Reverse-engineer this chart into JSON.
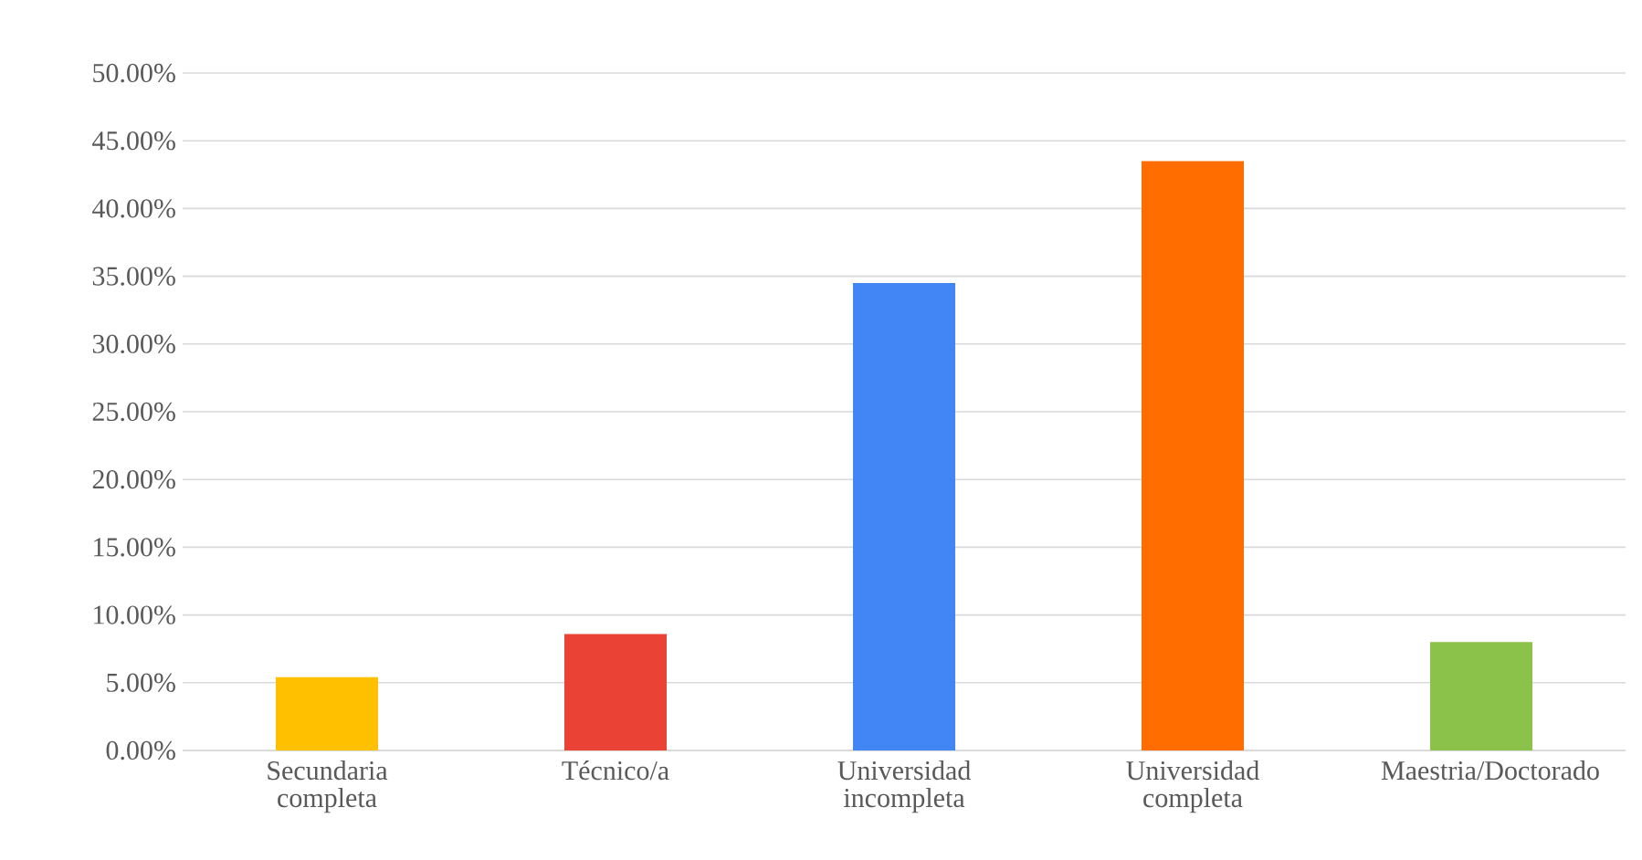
{
  "chart_data": {
    "type": "bar",
    "categories": [
      "Secundaria completa",
      "Técnico/a",
      "Universidad incompleta",
      "Universidad completa",
      "Maestria/Doctorado"
    ],
    "values": [
      5.4,
      8.6,
      34.5,
      43.5,
      8.0
    ],
    "colors": [
      "#ffc000",
      "#ea4335",
      "#4285f4",
      "#ff6d00",
      "#8bc34a"
    ],
    "ylim": [
      0,
      50
    ],
    "yticks": [
      {
        "value": 0,
        "label": "0.00%"
      },
      {
        "value": 5,
        "label": "5.00%"
      },
      {
        "value": 10,
        "label": "10.00%"
      },
      {
        "value": 15,
        "label": "15.00%"
      },
      {
        "value": 20,
        "label": "20.00%"
      },
      {
        "value": 25,
        "label": "25.00%"
      },
      {
        "value": 30,
        "label": "30.00%"
      },
      {
        "value": 35,
        "label": "35.00%"
      },
      {
        "value": 40,
        "label": "40.00%"
      },
      {
        "value": 45,
        "label": "45.00%"
      },
      {
        "value": 50,
        "label": "50.00%"
      }
    ],
    "grid": "y"
  }
}
